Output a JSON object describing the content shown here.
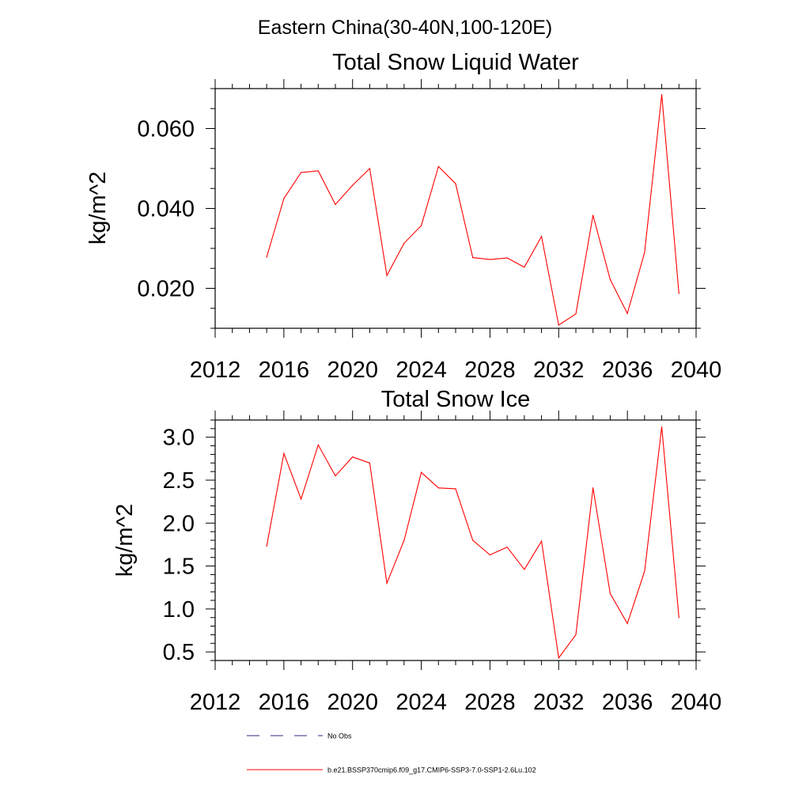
{
  "page_title": "Eastern China(30-40N,100-120E)",
  "chart_data": [
    {
      "type": "line",
      "title": "Total Snow Liquid Water",
      "xlabel": "",
      "ylabel": "kg/m^2",
      "xlim": [
        2012,
        2040
      ],
      "ylim": [
        0.01,
        0.07
      ],
      "xticks": [
        "2012",
        "2016",
        "2020",
        "2024",
        "2028",
        "2032",
        "2036",
        "2040"
      ],
      "yticks": [
        "0.020",
        "0.040",
        "0.060"
      ],
      "series": [
        {
          "name": "b.e21.BSSP370cmip6.f09_g17.CMIP6-SSP3-7.0-SSP1-2.6Lu.102",
          "color": "#ff0000",
          "x": [
            2015,
            2016,
            2017,
            2018,
            2019,
            2020,
            2021,
            2022,
            2023,
            2024,
            2025,
            2026,
            2027,
            2028,
            2029,
            2030,
            2031,
            2032,
            2033,
            2034,
            2035,
            2036,
            2037,
            2038,
            2039
          ],
          "y": [
            0.0278,
            0.0425,
            0.049,
            0.0494,
            0.041,
            0.0458,
            0.05,
            0.0232,
            0.0313,
            0.0357,
            0.0505,
            0.0462,
            0.0277,
            0.0272,
            0.0276,
            0.0253,
            0.033,
            0.0108,
            0.0136,
            0.0383,
            0.0222,
            0.0137,
            0.029,
            0.0685,
            0.0187
          ]
        }
      ]
    },
    {
      "type": "line",
      "title": "Total Snow Ice",
      "xlabel": "",
      "ylabel": "kg/m^2",
      "xlim": [
        2012,
        2040
      ],
      "ylim": [
        0.4,
        3.2
      ],
      "xticks": [
        "2012",
        "2016",
        "2020",
        "2024",
        "2028",
        "2032",
        "2036",
        "2040"
      ],
      "yticks": [
        "0.5",
        "1.0",
        "1.5",
        "2.0",
        "2.5",
        "3.0"
      ],
      "series": [
        {
          "name": "b.e21.BSSP370cmip6.f09_g17.CMIP6-SSP3-7.0-SSP1-2.6Lu.102",
          "color": "#ff0000",
          "x": [
            2015,
            2016,
            2017,
            2018,
            2019,
            2020,
            2021,
            2022,
            2023,
            2024,
            2025,
            2026,
            2027,
            2028,
            2029,
            2030,
            2031,
            2032,
            2033,
            2034,
            2035,
            2036,
            2037,
            2038,
            2039
          ],
          "y": [
            1.73,
            2.81,
            2.28,
            2.91,
            2.55,
            2.77,
            2.7,
            1.3,
            1.8,
            2.59,
            2.41,
            2.4,
            1.8,
            1.63,
            1.72,
            1.46,
            1.79,
            0.43,
            0.7,
            2.41,
            1.18,
            0.83,
            1.44,
            3.12,
            0.9
          ]
        }
      ]
    }
  ],
  "legend": [
    {
      "label": "No Obs",
      "color": "#2a2a8a",
      "style": "dashed"
    },
    {
      "label": "b.e21.BSSP370cmip6.f09_g17.CMIP6-SSP3-7.0-SSP1-2.6Lu.102",
      "color": "#ff0000",
      "style": "solid"
    }
  ]
}
